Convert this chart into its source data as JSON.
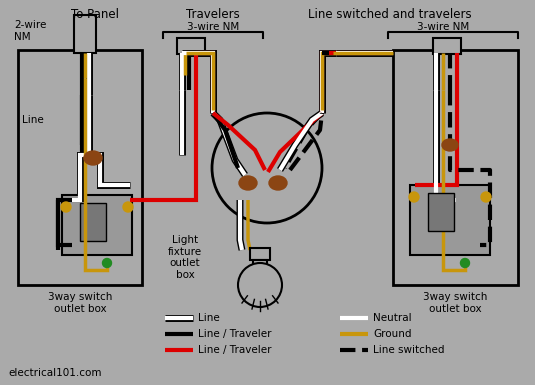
{
  "bg_color": "#aaaaaa",
  "wire_colors": {
    "black": "#000000",
    "white": "#ffffff",
    "red": "#dd0000",
    "ground": "#c8960c",
    "green": "#228B22"
  },
  "labels": {
    "to_panel": "To Panel",
    "travelers": "Travelers",
    "line_switched_travelers": "Line switched and travelers",
    "wire_2nm": "2-wire\nNM",
    "wire_3nm_left": "3-wire NM",
    "wire_3nm_right": "3-wire NM",
    "line": "Line",
    "switch_box_left": "3way switch\noutlet box",
    "switch_box_right": "3way switch\noutlet box",
    "light_fixture": "Light\nfixture\noutlet\nbox",
    "website": "electrical101.com"
  },
  "legend": [
    {
      "label": "Line",
      "color": "white",
      "style": "solid",
      "outline": true
    },
    {
      "label": "Line / Traveler",
      "color": "black",
      "style": "solid",
      "outline": false
    },
    {
      "label": "Line / Traveler",
      "color": "red",
      "style": "solid",
      "outline": false
    },
    {
      "label": "Neutral",
      "color": "white",
      "style": "solid",
      "outline": false
    },
    {
      "label": "Ground",
      "color": "#c8960c",
      "style": "solid",
      "outline": false
    },
    {
      "label": "Line switched",
      "color": "black",
      "style": "dashed",
      "outline": false
    }
  ]
}
